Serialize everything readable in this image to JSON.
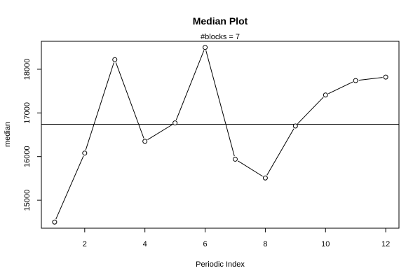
{
  "chart_data": {
    "type": "line",
    "title": "Median Plot",
    "subtitle": "#blocks =  7",
    "xlabel": "Periodic Index",
    "ylabel": "median",
    "x": [
      1,
      2,
      3,
      4,
      5,
      6,
      7,
      8,
      9,
      10,
      11,
      12
    ],
    "values": [
      14500,
      16080,
      18220,
      16350,
      16770,
      18500,
      15940,
      15510,
      16700,
      17410,
      17740,
      17820
    ],
    "reference_line": 16740,
    "xlim": [
      0.56,
      12.44
    ],
    "ylim": [
      14360,
      18640
    ],
    "x_ticks": [
      2,
      4,
      6,
      8,
      10,
      12
    ],
    "x_tick_labels": [
      "2",
      "4",
      "6",
      "8",
      "10",
      "12"
    ],
    "y_ticks": [
      15000,
      16000,
      17000,
      18000
    ],
    "y_tick_labels": [
      "15000",
      "16000",
      "17000",
      "18000"
    ],
    "grid": false,
    "legend": "none",
    "point_style": "open-circle"
  }
}
